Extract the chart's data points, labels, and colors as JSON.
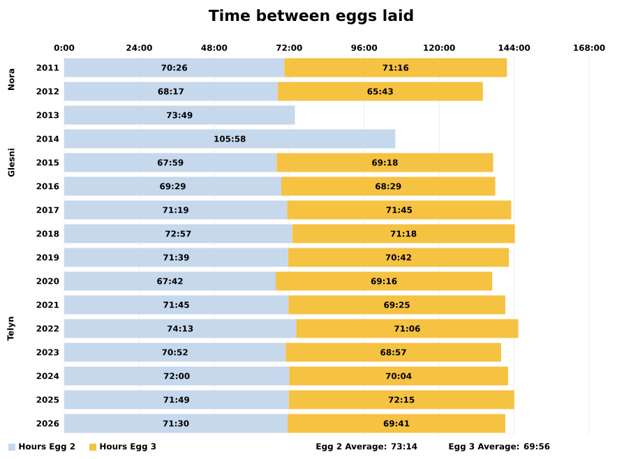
{
  "chart_data": {
    "type": "bar",
    "orientation": "horizontal",
    "stacked": true,
    "title": "Time between eggs laid",
    "categories": [
      "2011",
      "2012",
      "2013",
      "2014",
      "2015",
      "2016",
      "2017",
      "2018",
      "2019",
      "2020",
      "2021",
      "2022",
      "2023",
      "2024",
      "2025",
      "2026"
    ],
    "series": [
      {
        "name": "Hours Egg 2",
        "color": "#c5d8ec",
        "values": [
          70.43,
          68.28,
          73.82,
          105.97,
          67.98,
          69.48,
          71.32,
          72.95,
          71.65,
          67.7,
          71.75,
          74.22,
          70.87,
          72.0,
          71.82,
          71.5
        ],
        "value_labels": [
          "70:26",
          "68:17",
          "73:49",
          "105:58",
          "67:59",
          "69:29",
          "71:19",
          "72:57",
          "71:39",
          "67:42",
          "71:45",
          "74:13",
          "70:52",
          "72:00",
          "71:49",
          "71:30"
        ]
      },
      {
        "name": "Hours Egg 3",
        "color": "#f5c242",
        "values": [
          71.27,
          65.72,
          null,
          null,
          69.3,
          68.48,
          71.75,
          71.3,
          70.7,
          69.27,
          69.42,
          71.1,
          68.95,
          70.07,
          72.25,
          69.68
        ],
        "value_labels": [
          "71:16",
          "65:43",
          null,
          null,
          "69:18",
          "68:29",
          "71:45",
          "71:18",
          "70:42",
          "69:16",
          "69:25",
          "71:06",
          "68:57",
          "70:04",
          "72:15",
          "69:41"
        ]
      }
    ],
    "xlim": [
      0,
      168
    ],
    "xticks": [
      {
        "value": 0,
        "label": "0:00"
      },
      {
        "value": 24,
        "label": "24:00"
      },
      {
        "value": 48,
        "label": "48:00"
      },
      {
        "value": 72,
        "label": "72:00"
      },
      {
        "value": 96,
        "label": "96:00"
      },
      {
        "value": 120,
        "label": "120:00"
      },
      {
        "value": 144,
        "label": "144:00"
      },
      {
        "value": 168,
        "label": "168:00"
      }
    ],
    "grid": "x",
    "legend": "bottom left",
    "annotations": [
      "Nora",
      "Glesni",
      "Telyn",
      "Egg 2 Average: 73:14",
      "Egg 3 Average: 69:56"
    ]
  }
}
